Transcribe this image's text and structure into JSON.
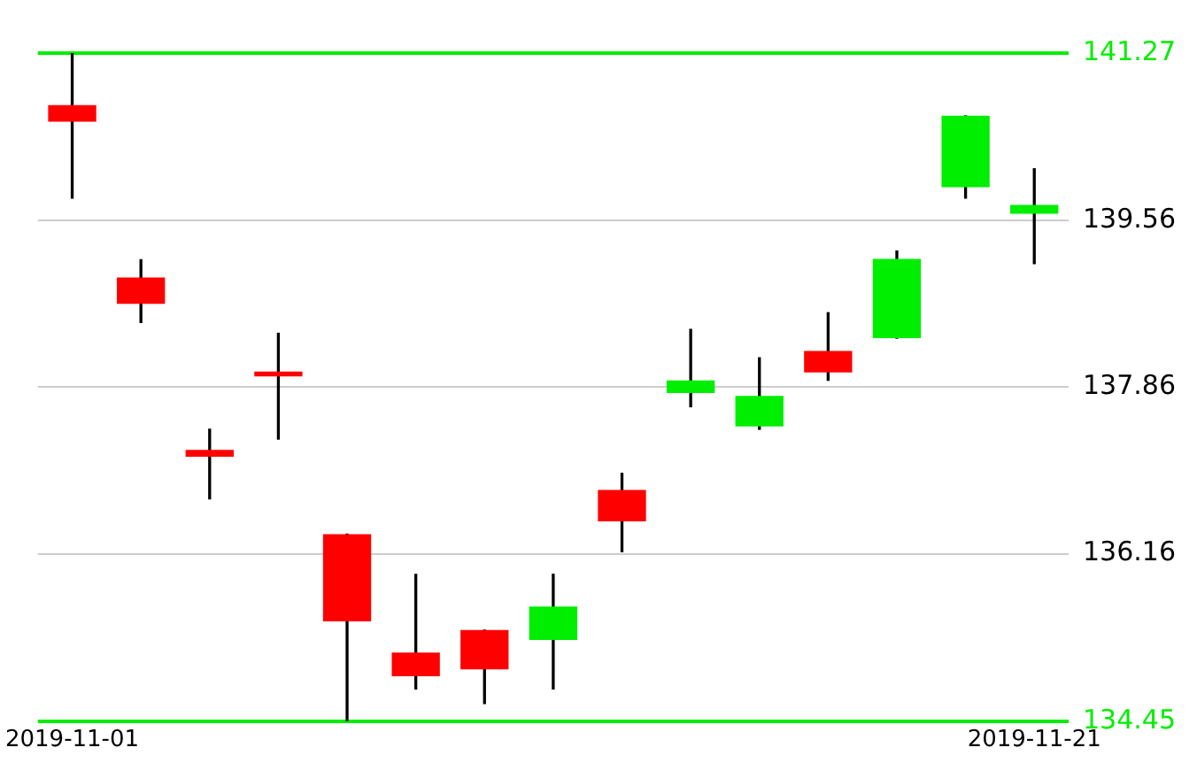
{
  "chart_data": {
    "type": "candlestick",
    "categories": [
      "2019-11-01",
      null,
      null,
      null,
      null,
      null,
      null,
      null,
      null,
      null,
      null,
      null,
      null,
      null,
      "2019-11-21"
    ],
    "ohlc": [
      [
        140.74,
        141.27,
        139.79,
        140.57
      ],
      [
        138.98,
        139.16,
        138.52,
        138.71
      ],
      [
        137.22,
        137.43,
        136.72,
        137.15
      ],
      [
        138.02,
        138.41,
        137.33,
        137.97
      ],
      [
        136.36,
        136.36,
        134.45,
        135.47
      ],
      [
        135.15,
        135.95,
        134.78,
        134.91
      ],
      [
        135.38,
        135.38,
        134.63,
        134.98
      ],
      [
        135.28,
        135.95,
        134.78,
        135.62
      ],
      [
        136.81,
        136.98,
        136.18,
        136.49
      ],
      [
        137.8,
        138.45,
        137.66,
        137.93
      ],
      [
        137.46,
        138.16,
        137.43,
        137.77
      ],
      [
        138.23,
        138.62,
        137.93,
        138.01
      ],
      [
        138.36,
        139.25,
        138.36,
        139.17
      ],
      [
        139.9,
        140.63,
        139.79,
        140.63
      ],
      [
        139.63,
        140.09,
        139.12,
        139.72
      ]
    ],
    "colors": [
      "#ff0000",
      "#ff0000",
      "#ff0000",
      "#ff0000",
      "#ff0000",
      "#ff0000",
      "#ff0000",
      "#00ee00",
      "#ff0000",
      "#00ee00",
      "#00ee00",
      "#ff0000",
      "#00ee00",
      "#00ee00",
      "#00ee00"
    ],
    "ylim": [
      134.45,
      141.27
    ],
    "yticks": [
      134.45,
      136.16,
      137.86,
      139.56,
      141.27
    ],
    "grid": "y",
    "legend": false
  }
}
